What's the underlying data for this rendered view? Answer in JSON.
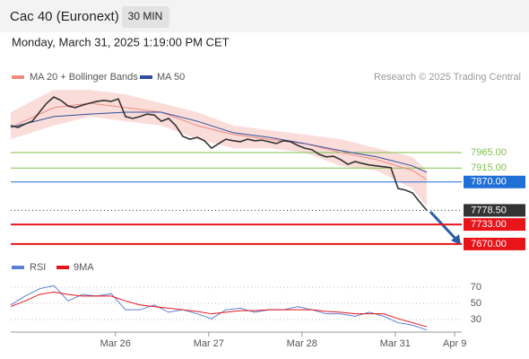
{
  "header": {
    "title": "Cac 40 (Euronext)",
    "interval": "30 MIN",
    "date": "Monday, March 31, 2025 1:19:00 PM CET",
    "credit": "Research © 2025 Trading Central"
  },
  "chart_data": [
    {
      "type": "line",
      "xlim": [
        0,
        62.875
      ],
      "ylim": [
        7632,
        8182
      ],
      "price": {
        "color": "#333333",
        "x": [
          0,
          1,
          2,
          3,
          4,
          5,
          6,
          7,
          8,
          9,
          10,
          11,
          12,
          13,
          14,
          15,
          16,
          17,
          18,
          19,
          20,
          21,
          22,
          23,
          24,
          25,
          26,
          27,
          28,
          29,
          30,
          31,
          32,
          33,
          34,
          35,
          36,
          37,
          38,
          39,
          40,
          41,
          42,
          43,
          44,
          45,
          46,
          47,
          48,
          49,
          50,
          51,
          52,
          53,
          54,
          55,
          56,
          57,
          58
        ],
        "values": [
          8052,
          8046,
          8057,
          8066,
          8095,
          8124,
          8144,
          8133,
          8115,
          8110,
          8118,
          8124,
          8130,
          8133,
          8130,
          8138,
          8081,
          8075,
          8081,
          8089,
          8086,
          8066,
          8075,
          8052,
          8017,
          8008,
          8014,
          8003,
          7979,
          7994,
          8008,
          8003,
          8000,
          8008,
          8003,
          8005,
          8000,
          7994,
          8003,
          8000,
          7988,
          7979,
          7974,
          7959,
          7951,
          7953,
          7942,
          7927,
          7936,
          7930,
          7925,
          7922,
          7919,
          7916,
          7849,
          7844,
          7835,
          7806,
          7778.5
        ]
      },
      "band": {
        "color": "#f9d3d0",
        "x": [
          0,
          6,
          11,
          16,
          21,
          26,
          31,
          36,
          41,
          46,
          51,
          56,
          58
        ],
        "upper": [
          8095,
          8167,
          8167,
          8153,
          8124,
          8095,
          8052,
          8037,
          8023,
          8008,
          7979,
          7951,
          7907
        ],
        "lower": [
          8008,
          8052,
          8081,
          8066,
          8052,
          8008,
          7979,
          7979,
          7965,
          7922,
          7907,
          7849,
          7792
        ]
      },
      "series": [
        {
          "name": "MA 20 + Bollinger Bands",
          "color": "#f08a80",
          "x": [
            0,
            6,
            11,
            16,
            21,
            26,
            31,
            36,
            41,
            46,
            51,
            56,
            58
          ],
          "values": [
            8046,
            8110,
            8124,
            8110,
            8095,
            8052,
            8023,
            8008,
            7994,
            7965,
            7942,
            7907,
            7878
          ]
        },
        {
          "name": "MA 50",
          "color": "#2f4f9e",
          "x": [
            0,
            6,
            11,
            16,
            21,
            26,
            31,
            36,
            41,
            46,
            51,
            56,
            58
          ],
          "values": [
            8046,
            8081,
            8089,
            8095,
            8095,
            8066,
            8029,
            8014,
            7994,
            7971,
            7951,
            7922,
            7901
          ]
        }
      ],
      "levels": [
        {
          "value": 7965,
          "label": "7965.00",
          "color": "#7fc24a",
          "style": "text"
        },
        {
          "value": 7915,
          "label": "7915.00",
          "color": "#7fc24a",
          "style": "text"
        },
        {
          "value": 7870,
          "label": "7870.00",
          "color": "#1f6fd6",
          "style": "box"
        },
        {
          "value": 7778.5,
          "label": "7778.50",
          "color": "#333333",
          "style": "box"
        },
        {
          "value": 7733,
          "label": "7733.00",
          "color": "#e8141a",
          "style": "box"
        },
        {
          "value": 7670,
          "label": "7670.00",
          "color": "#e8141a",
          "style": "box"
        }
      ]
    },
    {
      "type": "line",
      "xlim": [
        0,
        62.875
      ],
      "ylim": [
        14.4,
        86.7
      ],
      "yticks": [
        30,
        50,
        70
      ],
      "xticks": [
        {
          "value": 14.6,
          "label": "Mar 26"
        },
        {
          "value": 27.6,
          "label": "Mar 27"
        },
        {
          "value": 40.6,
          "label": "Mar 28"
        },
        {
          "value": 53.6,
          "label": "Mar 31"
        },
        {
          "value": 61.9,
          "label": "Apr 9"
        }
      ],
      "series": [
        {
          "name": "RSI",
          "color": "#5b7fd6",
          "x": [
            0,
            2,
            4,
            6,
            8,
            10,
            12,
            14,
            16,
            18,
            20,
            22,
            24,
            26,
            28,
            30,
            32,
            34,
            36,
            38,
            40,
            42,
            44,
            46,
            48,
            50,
            52,
            54,
            56,
            58
          ],
          "values": [
            48,
            59,
            68,
            72,
            53,
            61,
            59,
            62,
            42,
            42,
            48,
            39,
            42,
            37,
            31,
            42,
            44,
            39,
            42,
            42,
            46,
            42,
            37,
            37,
            34,
            39,
            34,
            26,
            23,
            17
          ]
        },
        {
          "name": "9MA",
          "color": "#e8141a",
          "x": [
            0,
            2,
            4,
            6,
            8,
            10,
            12,
            14,
            16,
            18,
            20,
            22,
            24,
            26,
            28,
            30,
            32,
            34,
            36,
            38,
            40,
            42,
            44,
            46,
            48,
            50,
            52,
            54,
            56,
            58
          ],
          "values": [
            46,
            53,
            61,
            64,
            61,
            59,
            59,
            59,
            53,
            48,
            46,
            44,
            42,
            40,
            37,
            39,
            41,
            41,
            42,
            42,
            42,
            42,
            40,
            39,
            37,
            37,
            37,
            31,
            26,
            21
          ]
        }
      ]
    }
  ]
}
